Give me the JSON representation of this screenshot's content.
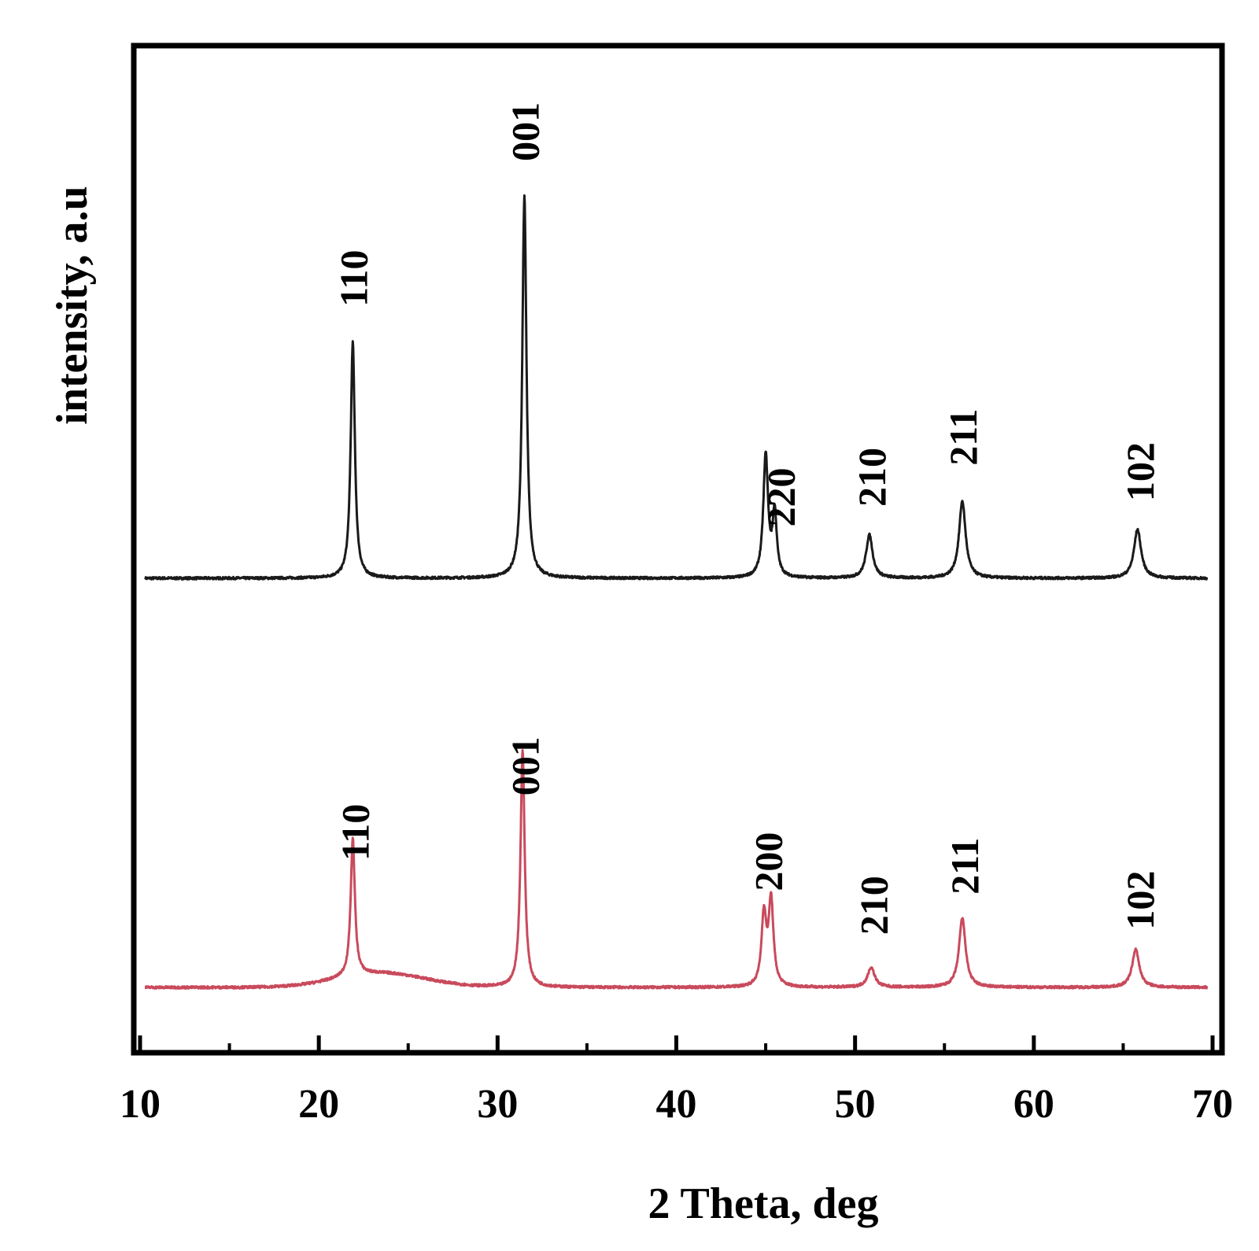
{
  "chart_data": {
    "type": "line",
    "title": "",
    "xlabel": "2 Theta, deg",
    "ylabel": "intensity, a.u",
    "xlim": [
      10,
      70
    ],
    "xticks": [
      10,
      20,
      30,
      40,
      50,
      60,
      70
    ],
    "xticks_minor": [
      15,
      25,
      35,
      45,
      55,
      65
    ],
    "yticks": [],
    "grid": false,
    "legend": "none",
    "series": [
      {
        "color": "#1a1a1a",
        "baseline": 0,
        "peaks": [
          {
            "x": 21.9,
            "height": 300,
            "width": 0.14
          },
          {
            "x": 31.5,
            "height": 485,
            "width": 0.14
          },
          {
            "x": 45.0,
            "height": 155,
            "width": 0.16
          },
          {
            "x": 45.5,
            "height": 80,
            "width": 0.14
          },
          {
            "x": 50.8,
            "height": 55,
            "width": 0.22
          },
          {
            "x": 56.0,
            "height": 98,
            "width": 0.22
          },
          {
            "x": 65.8,
            "height": 62,
            "width": 0.24
          }
        ],
        "labels": [
          {
            "x": 21.9,
            "text": "110"
          },
          {
            "x": 31.5,
            "text": "001"
          },
          {
            "x": 45.8,
            "text": "220"
          },
          {
            "x": 50.9,
            "text": "210"
          },
          {
            "x": 56.0,
            "text": "211"
          },
          {
            "x": 65.9,
            "text": "102"
          }
        ]
      },
      {
        "color": "#c94a5c",
        "baseline": -520,
        "hump": {
          "x": 23.5,
          "height": 18,
          "width": 3.5
        },
        "peaks": [
          {
            "x": 21.9,
            "height": 175,
            "width": 0.14
          },
          {
            "x": 31.4,
            "height": 300,
            "width": 0.14
          },
          {
            "x": 44.9,
            "height": 90,
            "width": 0.16
          },
          {
            "x": 45.3,
            "height": 108,
            "width": 0.16
          },
          {
            "x": 50.9,
            "height": 25,
            "width": 0.24
          },
          {
            "x": 56.0,
            "height": 88,
            "width": 0.22
          },
          {
            "x": 65.7,
            "height": 48,
            "width": 0.24
          }
        ],
        "labels": [
          {
            "x": 22.0,
            "text": "110"
          },
          {
            "x": 31.5,
            "text": "001"
          },
          {
            "x": 45.1,
            "text": "200"
          },
          {
            "x": 51.0,
            "text": "210"
          },
          {
            "x": 56.1,
            "text": "211"
          },
          {
            "x": 65.9,
            "text": "102"
          }
        ]
      }
    ]
  }
}
